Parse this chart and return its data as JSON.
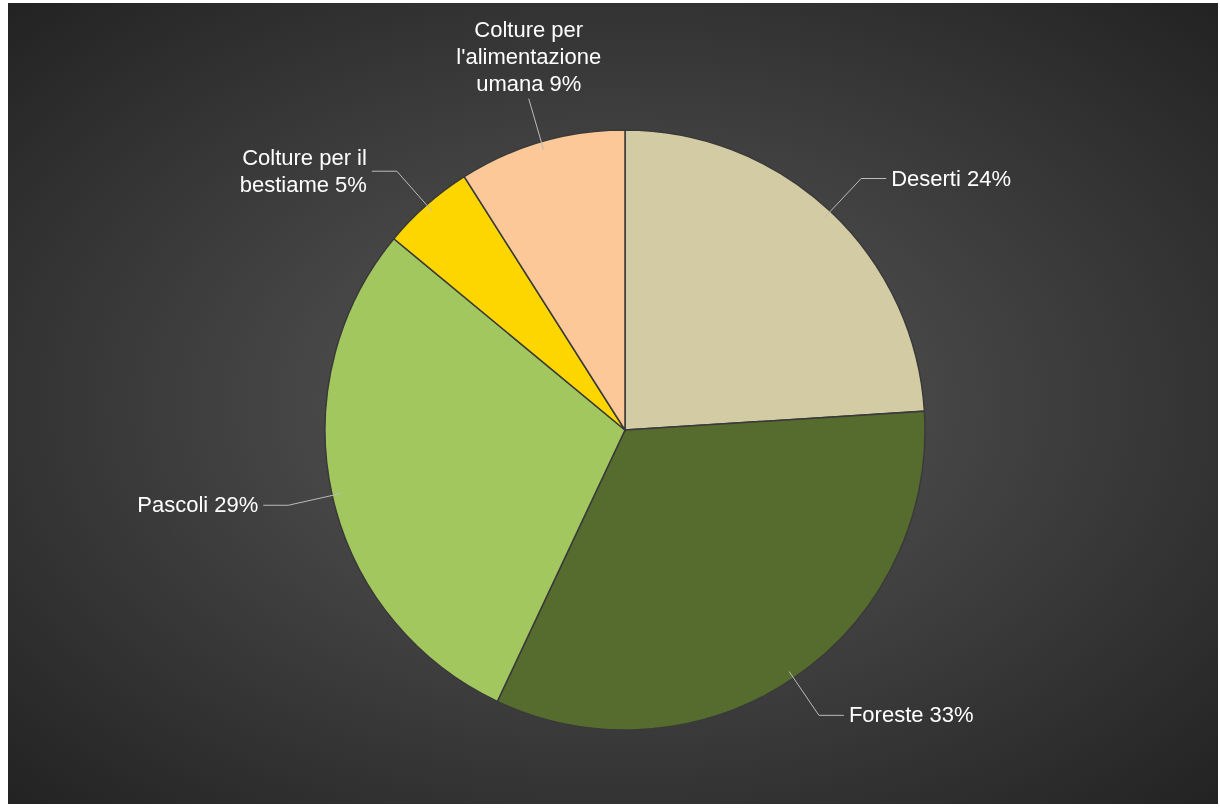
{
  "chart_data": {
    "type": "pie",
    "categories": [
      "Deserti",
      "Foreste",
      "Pascoli",
      "Colture per il bestiame",
      "Colture per l'alimentazione umana"
    ],
    "values": [
      24,
      33,
      29,
      5,
      9
    ],
    "colors": [
      "#d2cba4",
      "#566b2e",
      "#a3c75f",
      "#fdd600",
      "#fcc898"
    ],
    "value_labels": [
      "24%",
      "33%",
      "29%",
      "5%",
      "9%"
    ]
  }
}
